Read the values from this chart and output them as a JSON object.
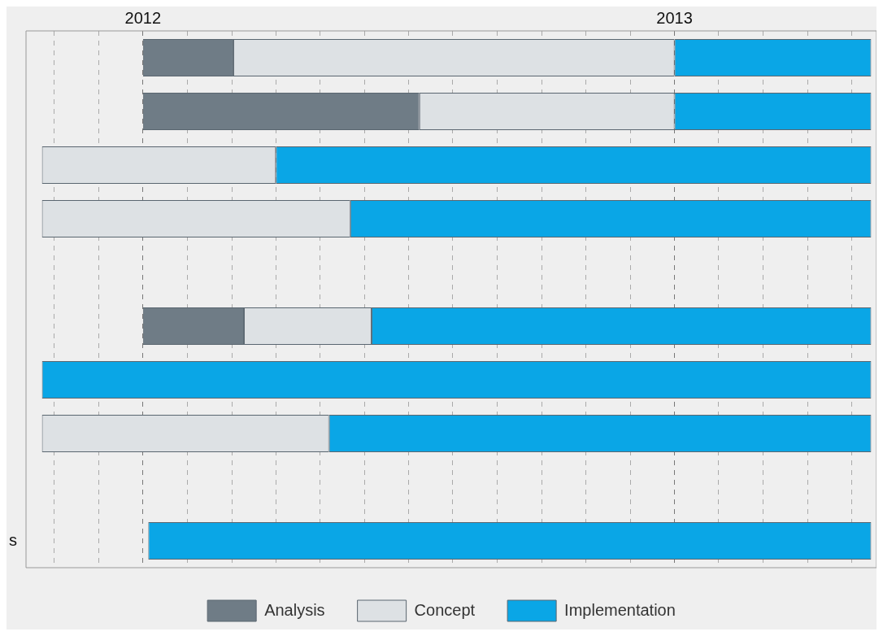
{
  "chart_data": {
    "type": "bar",
    "orientation": "horizontal",
    "stacked": true,
    "categories": [
      null,
      null,
      null,
      null,
      null,
      null,
      null,
      null,
      null,
      "s"
    ],
    "series": [
      {
        "name": "Analysis",
        "color": "#6f7c86",
        "base": [
          2012,
          2012,
          null,
          null,
          null,
          2012,
          null,
          null,
          null,
          null
        ],
        "values": [
          0.17,
          0.52,
          null,
          null,
          null,
          0.19,
          null,
          null,
          null,
          null
        ]
      },
      {
        "name": "Concept",
        "color": "#dde1e4",
        "base": [
          2012.17,
          2012.52,
          2011.81,
          2011.81,
          null,
          2012.19,
          null,
          2011.81,
          null,
          null
        ],
        "values": [
          0.83,
          0.48,
          0.44,
          0.58,
          null,
          0.24,
          null,
          0.54,
          null,
          null
        ]
      },
      {
        "name": "Implementation",
        "color": "#0aa6e6",
        "base": [
          2013,
          2013,
          2012.25,
          2012.39,
          null,
          2012.43,
          2011.81,
          2012.35,
          null,
          2012.01
        ],
        "values": [
          0.37,
          0.37,
          1.12,
          0.98,
          null,
          0.94,
          1.56,
          1.02,
          null,
          1.36
        ]
      }
    ],
    "xlim": [
      2011.78,
      2013.38
    ],
    "xticks": [
      {
        "value": 2011.833,
        "label": null
      },
      {
        "value": 2011.917,
        "label": null
      },
      {
        "value": 2012,
        "label": "2012"
      },
      {
        "value": 2012.083,
        "label": null
      },
      {
        "value": 2012.167,
        "label": null
      },
      {
        "value": 2012.25,
        "label": null
      },
      {
        "value": 2012.333,
        "label": null
      },
      {
        "value": 2012.417,
        "label": null
      },
      {
        "value": 2012.5,
        "label": null
      },
      {
        "value": 2012.583,
        "label": null
      },
      {
        "value": 2012.667,
        "label": null
      },
      {
        "value": 2012.75,
        "label": null
      },
      {
        "value": 2012.833,
        "label": null
      },
      {
        "value": 2012.917,
        "label": null
      },
      {
        "value": 2013,
        "label": "2013"
      },
      {
        "value": 2013.083,
        "label": null
      },
      {
        "value": 2013.167,
        "label": null
      },
      {
        "value": 2013.25,
        "label": null
      },
      {
        "value": 2013.333,
        "label": null
      }
    ],
    "grid": "x",
    "legend": "bottom"
  }
}
